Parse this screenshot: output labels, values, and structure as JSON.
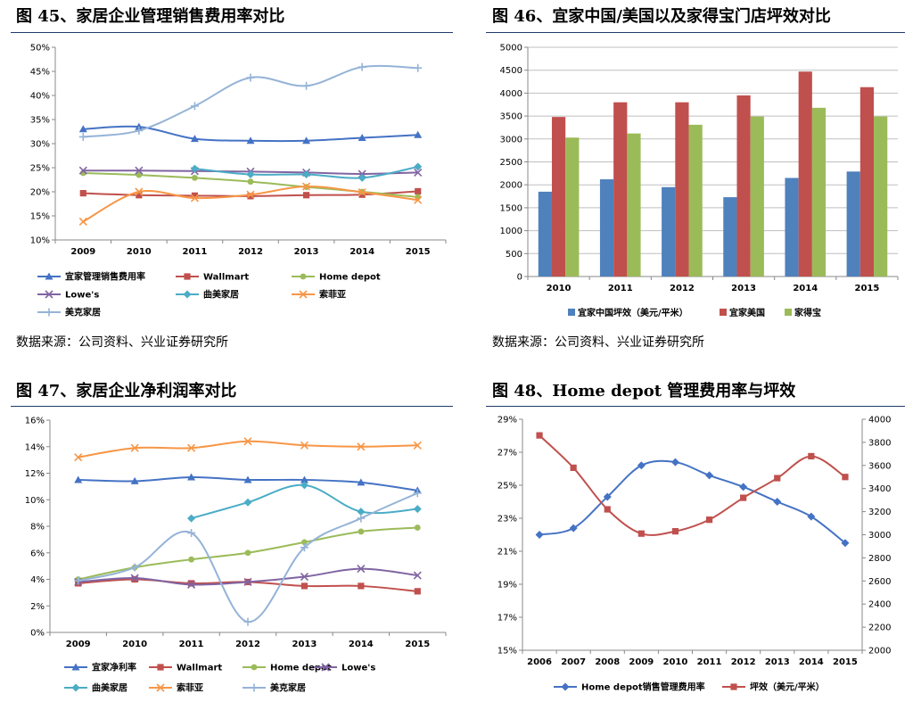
{
  "panels": [
    {
      "title": "图 45、家居企业管理销售费用率对比",
      "source": "数据来源：公司资料、兴业证券研究所"
    },
    {
      "title": "图 46、宜家中国/美国以及家得宝门店坪效对比",
      "source": "数据来源：公司资料、兴业证券研究所"
    },
    {
      "title": "图 47、家居企业净利润率对比",
      "source": ""
    },
    {
      "title": "图 48、Home depot 管理费用率与坪效",
      "source": ""
    }
  ],
  "chart_data": [
    {
      "type": "line",
      "title": "图 45、家居企业管理销售费用率对比",
      "x": [
        "2009",
        "2010",
        "2011",
        "2012",
        "2013",
        "2014",
        "2015"
      ],
      "ylim": [
        0.1,
        0.5
      ],
      "yticks": [
        "10%",
        "15%",
        "20%",
        "25%",
        "30%",
        "35%",
        "40%",
        "45%",
        "50%"
      ],
      "grid": false,
      "legend": "bottom",
      "series": [
        {
          "name": "宜家管理销售费用率",
          "color": "#4472c4",
          "marker": "triangle",
          "values": [
            0.33,
            0.335,
            0.31,
            0.306,
            0.306,
            0.312,
            0.318
          ]
        },
        {
          "name": "Wallmart",
          "color": "#c0504d",
          "marker": "square",
          "values": [
            0.197,
            0.193,
            0.192,
            0.191,
            0.193,
            0.194,
            0.201
          ]
        },
        {
          "name": "Home depot",
          "color": "#9bbb59",
          "marker": "circle",
          "values": [
            0.239,
            0.235,
            0.229,
            0.221,
            0.21,
            0.2,
            0.189
          ]
        },
        {
          "name": "Lowe's",
          "color": "#8064a2",
          "marker": "x",
          "values": [
            0.244,
            0.244,
            0.243,
            0.242,
            0.24,
            0.237,
            0.24
          ]
        },
        {
          "name": "曲美家居",
          "color": "#4bacc6",
          "marker": "diamond",
          "values": [
            null,
            null,
            0.248,
            0.236,
            0.236,
            0.229,
            0.252
          ]
        },
        {
          "name": "索菲亚",
          "color": "#f79646",
          "marker": "x",
          "values": [
            0.138,
            0.2,
            0.187,
            0.194,
            0.211,
            0.199,
            0.183
          ]
        },
        {
          "name": "美克家居",
          "color": "#95b3d7",
          "marker": "plus",
          "values": [
            0.314,
            0.327,
            0.378,
            0.437,
            0.42,
            0.459,
            0.457
          ]
        }
      ]
    },
    {
      "type": "bar",
      "title": "图 46、宜家中国/美国以及家得宝门店坪效对比",
      "categories": [
        "2010",
        "2011",
        "2012",
        "2013",
        "2014",
        "2015"
      ],
      "ylim": [
        0,
        5000
      ],
      "yticks": [
        "0",
        "500",
        "1000",
        "1500",
        "2000",
        "2500",
        "3000",
        "3500",
        "4000",
        "4500",
        "5000"
      ],
      "grid": true,
      "legend": "bottom",
      "series": [
        {
          "name": "宜家中国坪效（美元/平米）",
          "color": "#4f81bd",
          "values": [
            1850,
            2120,
            1950,
            1730,
            2150,
            2290
          ]
        },
        {
          "name": "宜家美国",
          "color": "#c0504d",
          "values": [
            3480,
            3800,
            3800,
            3950,
            4470,
            4130
          ]
        },
        {
          "name": "家得宝",
          "color": "#9bbb59",
          "values": [
            3030,
            3120,
            3310,
            3490,
            3680,
            3490
          ]
        }
      ]
    },
    {
      "type": "line",
      "title": "图 47、家居企业净利润率对比",
      "x": [
        "2009",
        "2010",
        "2011",
        "2012",
        "2013",
        "2014",
        "2015"
      ],
      "ylim": [
        0,
        0.16
      ],
      "yticks": [
        "0%",
        "2%",
        "4%",
        "6%",
        "8%",
        "10%",
        "12%",
        "14%",
        "16%"
      ],
      "grid": false,
      "legend": "bottom",
      "series": [
        {
          "name": "宜家净利率",
          "color": "#4472c4",
          "marker": "triangle",
          "values": [
            0.115,
            0.114,
            0.117,
            0.115,
            0.115,
            0.113,
            0.107
          ]
        },
        {
          "name": "Wallmart",
          "color": "#c0504d",
          "marker": "square",
          "values": [
            0.037,
            0.04,
            0.037,
            0.038,
            0.035,
            0.035,
            0.031
          ]
        },
        {
          "name": "Home depot",
          "color": "#9bbb59",
          "marker": "circle",
          "values": [
            0.04,
            0.049,
            0.055,
            0.06,
            0.068,
            0.076,
            0.079
          ]
        },
        {
          "name": "Lowe's",
          "color": "#8064a2",
          "marker": "x",
          "values": [
            0.038,
            0.041,
            0.036,
            0.038,
            0.042,
            0.048,
            0.043
          ]
        },
        {
          "name": "曲美家居",
          "color": "#4bacc6",
          "marker": "diamond",
          "values": [
            null,
            null,
            0.086,
            0.098,
            0.111,
            0.091,
            0.093
          ]
        },
        {
          "name": "索菲亚",
          "color": "#f79646",
          "marker": "x",
          "values": [
            0.132,
            0.139,
            0.139,
            0.144,
            0.141,
            0.14,
            0.141
          ]
        },
        {
          "name": "美克家居",
          "color": "#95b3d7",
          "marker": "plus",
          "values": [
            0.039,
            0.049,
            0.075,
            0.008,
            0.064,
            0.086,
            0.105
          ]
        }
      ]
    },
    {
      "type": "line",
      "title": "图 48、Home depot 管理费用率与坪效",
      "x": [
        "2006",
        "2007",
        "2008",
        "2009",
        "2010",
        "2011",
        "2012",
        "2013",
        "2014",
        "2015"
      ],
      "ylim": [
        0.15,
        0.29
      ],
      "ylim_right": [
        2000,
        4000
      ],
      "yticks": [
        "15%",
        "17%",
        "19%",
        "21%",
        "23%",
        "25%",
        "27%",
        "29%"
      ],
      "yticks_right": [
        "2000",
        "2200",
        "2400",
        "2600",
        "2800",
        "3000",
        "3200",
        "3400",
        "3600",
        "3800",
        "4000"
      ],
      "grid": false,
      "legend": "bottom",
      "series": [
        {
          "name": "Home depot销售管理费用率",
          "color": "#4472c4",
          "marker": "diamond",
          "axis": "left",
          "values": [
            0.22,
            0.224,
            0.243,
            0.262,
            0.264,
            0.256,
            0.249,
            0.24,
            0.231,
            0.215
          ]
        },
        {
          "name": "坪效（美元/平米）",
          "color": "#c0504d",
          "marker": "square",
          "axis": "right",
          "values": [
            3860,
            3580,
            3220,
            3010,
            3030,
            3130,
            3320,
            3490,
            3680,
            3500
          ]
        }
      ]
    }
  ]
}
